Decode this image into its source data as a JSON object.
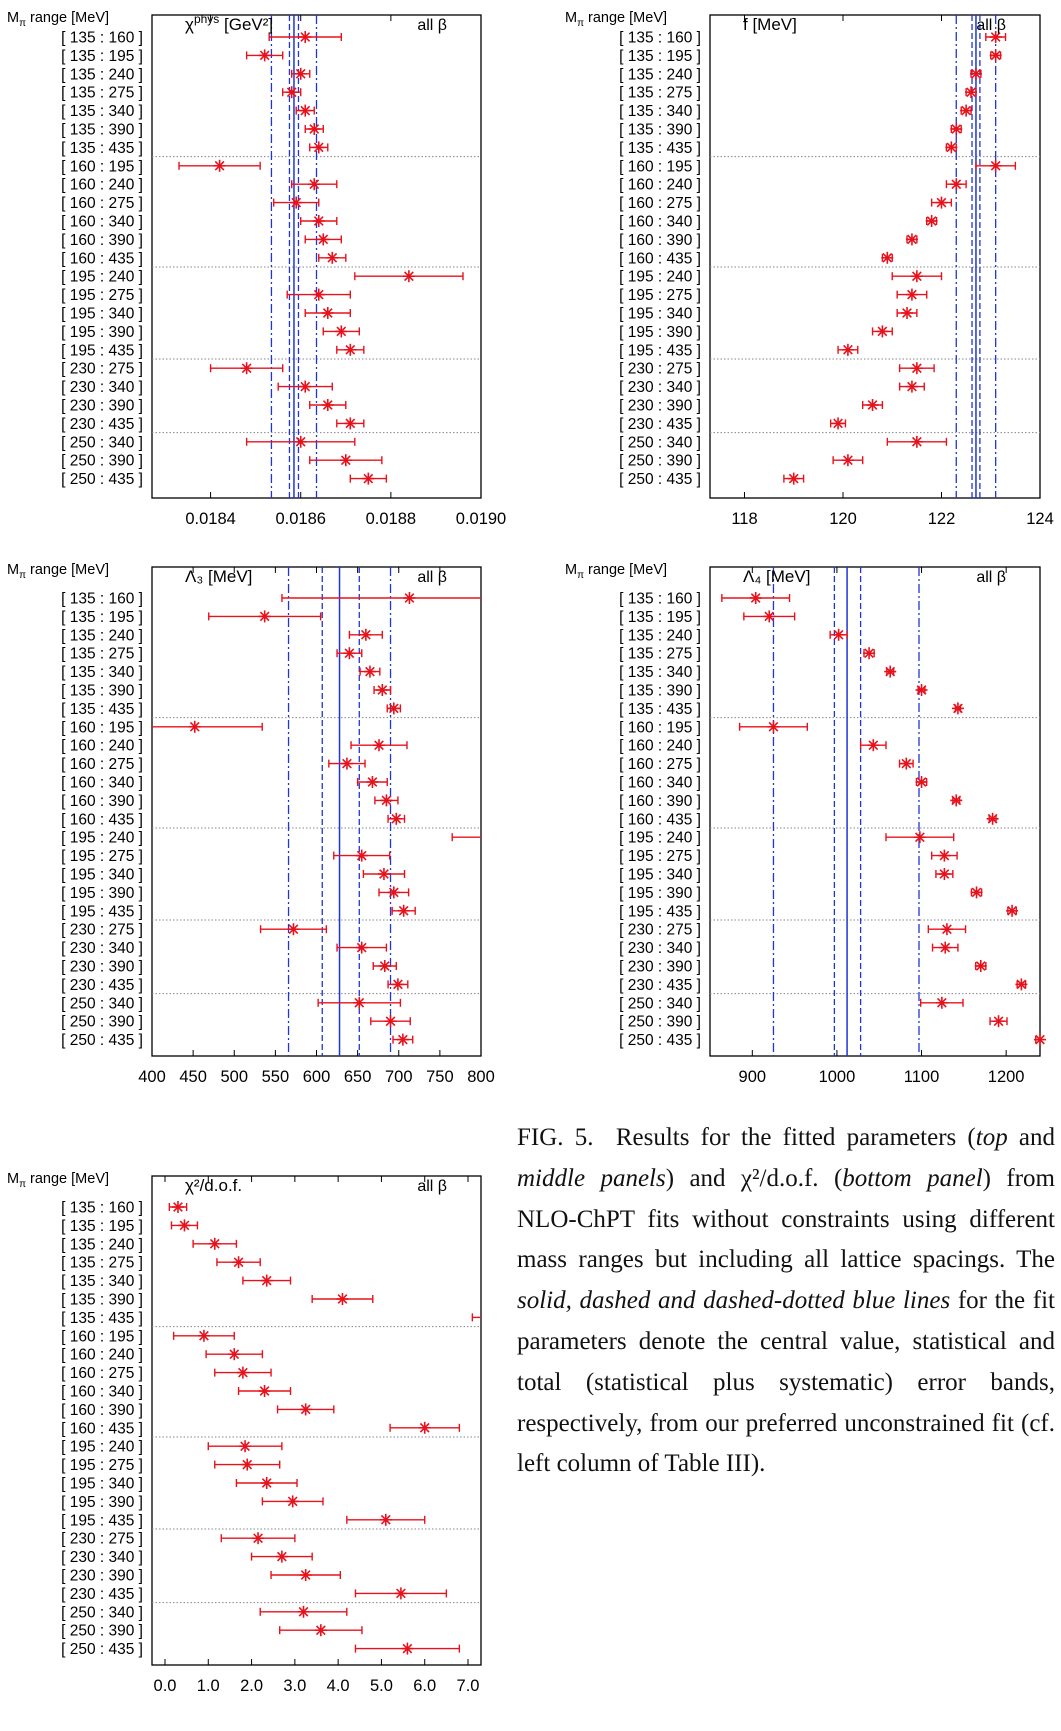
{
  "ranges": [
    "[ 135 : 160 ]",
    "[ 135 : 195 ]",
    "[ 135 : 240 ]",
    "[ 135 : 275 ]",
    "[ 135 : 340 ]",
    "[ 135 : 390 ]",
    "[ 135 : 435 ]",
    "[ 160 : 195 ]",
    "[ 160 : 240 ]",
    "[ 160 : 275 ]",
    "[ 160 : 340 ]",
    "[ 160 : 390 ]",
    "[ 160 : 435 ]",
    "[ 195 : 240 ]",
    "[ 195 : 275 ]",
    "[ 195 : 340 ]",
    "[ 195 : 390 ]",
    "[ 195 : 435 ]",
    "[ 230 : 275 ]",
    "[ 230 : 340 ]",
    "[ 230 : 390 ]",
    "[ 230 : 435 ]",
    "[ 250 : 340 ]",
    "[ 250 : 390 ]",
    "[ 250 : 435 ]"
  ],
  "colors": {
    "data": "#e8121c",
    "ref": "#1f35d6",
    "separator": "#888888"
  },
  "caption": {
    "fig": "FIG. 5.",
    "t1": "Results for the fitted parameters (",
    "i1": "top",
    "t2": " and ",
    "i2": "middle panels",
    "t3": ") and χ²/d.o.f. (",
    "i3": "bottom panel",
    "t4": ") from NLO-ChPT fits without constraints using different mass ranges but including all lattice spacings. The ",
    "i4": "solid, dashed and dashed-dotted blue lines",
    "t5": " for the fit parameters denote the central value, statistical and total (statistical plus systematic) error bands, respectively, from our preferred unconstrained fit (cf. left column of Table III)."
  },
  "chart_data": [
    {
      "type": "scatter",
      "title": "χ^phys [GeV²]",
      "corner_label": "all β",
      "ylabel": "M_π range [MeV]",
      "xlim": [
        0.01827,
        0.019
      ],
      "ticks": [
        0.0184,
        0.0186,
        0.0188,
        0.019
      ],
      "tick_labels": [
        "0.0184",
        "0.0186",
        "0.0188",
        "0.0190"
      ],
      "values": [
        0.01861,
        0.01852,
        0.0186,
        0.01858,
        0.01861,
        0.01863,
        0.01864,
        0.01842,
        0.01863,
        0.01859,
        0.01864,
        0.01865,
        0.01867,
        0.01884,
        0.01864,
        0.01866,
        0.01869,
        0.01871,
        0.01848,
        0.01861,
        0.01866,
        0.01871,
        0.0186,
        0.0187,
        0.01875
      ],
      "errors": [
        8e-05,
        4e-05,
        2e-05,
        2e-05,
        2e-05,
        2e-05,
        2e-05,
        9e-05,
        5e-05,
        5e-05,
        4e-05,
        4e-05,
        3e-05,
        0.00012,
        7e-05,
        5e-05,
        4e-05,
        3e-05,
        8e-05,
        6e-05,
        4e-05,
        3e-05,
        0.00012,
        8e-05,
        4e-05
      ],
      "ref": {
        "central": 0.018585,
        "stat": [
          0.018575,
          0.018595
        ],
        "total": [
          0.018535,
          0.018635
        ]
      },
      "separators_after": [
        7,
        13,
        18,
        22
      ]
    },
    {
      "type": "scatter",
      "title": "f [MeV]",
      "corner_label": "all β",
      "ylabel": "M_π range [MeV]",
      "xlim": [
        117.3,
        124
      ],
      "ticks": [
        118,
        120,
        122,
        124
      ],
      "tick_labels": [
        "118",
        "120",
        "122",
        "124"
      ],
      "values": [
        123.1,
        123.1,
        122.7,
        122.6,
        122.5,
        122.3,
        122.2,
        123.1,
        122.3,
        122.0,
        121.8,
        121.4,
        120.9,
        121.5,
        121.4,
        121.3,
        120.8,
        120.1,
        121.5,
        121.4,
        120.6,
        119.9,
        121.5,
        120.1,
        119.0
      ],
      "errors": [
        0.2,
        0.1,
        0.1,
        0.1,
        0.1,
        0.1,
        0.1,
        0.4,
        0.2,
        0.2,
        0.1,
        0.1,
        0.1,
        0.5,
        0.3,
        0.2,
        0.2,
        0.2,
        0.35,
        0.25,
        0.2,
        0.15,
        0.6,
        0.3,
        0.2
      ],
      "ref": {
        "central": 122.7,
        "stat": [
          122.62,
          122.78
        ],
        "total": [
          122.3,
          123.1
        ]
      },
      "separators_after": [
        7,
        13,
        18,
        22
      ]
    },
    {
      "type": "scatter",
      "title": "Λ₃ [MeV]",
      "corner_label": "all β",
      "ylabel": "M_π range [MeV]",
      "xlim": [
        400,
        800
      ],
      "ticks": [
        400,
        450,
        500,
        550,
        600,
        650,
        700,
        750,
        800
      ],
      "tick_labels": [
        "400",
        "450",
        "500",
        "550",
        "600",
        "650",
        "700",
        "750",
        "800"
      ],
      "values": [
        713,
        537,
        660,
        640,
        665,
        680,
        694,
        452,
        676,
        637,
        668,
        685,
        697,
        840,
        655,
        682,
        694,
        706,
        572,
        655,
        683,
        699,
        652,
        690,
        705
      ],
      "errors": [
        155,
        68,
        20,
        15,
        12,
        10,
        8,
        82,
        34,
        22,
        18,
        14,
        10,
        75,
        34,
        25,
        18,
        14,
        40,
        30,
        14,
        12,
        50,
        24,
        12
      ],
      "ref": {
        "central": 628,
        "stat": [
          607,
          652
        ],
        "total": [
          566,
          690
        ]
      },
      "separators_after": [
        7,
        13,
        18,
        22
      ]
    },
    {
      "type": "scatter",
      "title": "Λ₄ [MeV]",
      "corner_label": "all β",
      "ylabel": "M_π range [MeV]",
      "xlim": [
        850,
        1240
      ],
      "ticks": [
        900,
        1000,
        1100,
        1200
      ],
      "tick_labels": [
        "900",
        "1000",
        "1100",
        "1200"
      ],
      "values": [
        904,
        920,
        1002,
        1038,
        1063,
        1100,
        1143,
        925,
        1043,
        1082,
        1100,
        1141,
        1184,
        1098,
        1127,
        1127,
        1165,
        1207,
        1130,
        1128,
        1170,
        1218,
        1124,
        1191,
        1240
      ],
      "errors": [
        40,
        30,
        10,
        6,
        4,
        4,
        3,
        40,
        15,
        8,
        6,
        4,
        4,
        40,
        15,
        10,
        6,
        5,
        22,
        15,
        6,
        5,
        25,
        10,
        5
      ],
      "ref": {
        "central": 1012,
        "stat": [
          997,
          1028
        ],
        "total": [
          925,
          1097
        ]
      },
      "separators_after": [
        7,
        13,
        18,
        22
      ]
    },
    {
      "type": "scatter",
      "title": "χ²/d.o.f.",
      "corner_label": "all β",
      "ylabel": "M_π range [MeV]",
      "xlim": [
        -0.3,
        7.3
      ],
      "ticks": [
        0,
        1,
        2,
        3,
        4,
        5,
        6,
        7
      ],
      "tick_labels": [
        "0.0",
        "1.0",
        "2.0",
        "3.0",
        "4.0",
        "5.0",
        "6.0",
        "7.0"
      ],
      "values": [
        0.3,
        0.45,
        1.15,
        1.7,
        2.35,
        4.1,
        7.9,
        0.9,
        1.6,
        1.8,
        2.3,
        3.25,
        6.0,
        1.85,
        1.9,
        2.35,
        2.95,
        5.1,
        2.15,
        2.7,
        3.25,
        5.45,
        3.2,
        3.6,
        5.6
      ],
      "errors": [
        0.2,
        0.3,
        0.5,
        0.5,
        0.55,
        0.7,
        0.8,
        0.7,
        0.65,
        0.65,
        0.6,
        0.65,
        0.8,
        0.85,
        0.75,
        0.7,
        0.7,
        0.9,
        0.85,
        0.7,
        0.8,
        1.05,
        1.0,
        0.95,
        1.2
      ],
      "separators_after": [
        7,
        13,
        18,
        22
      ]
    }
  ]
}
